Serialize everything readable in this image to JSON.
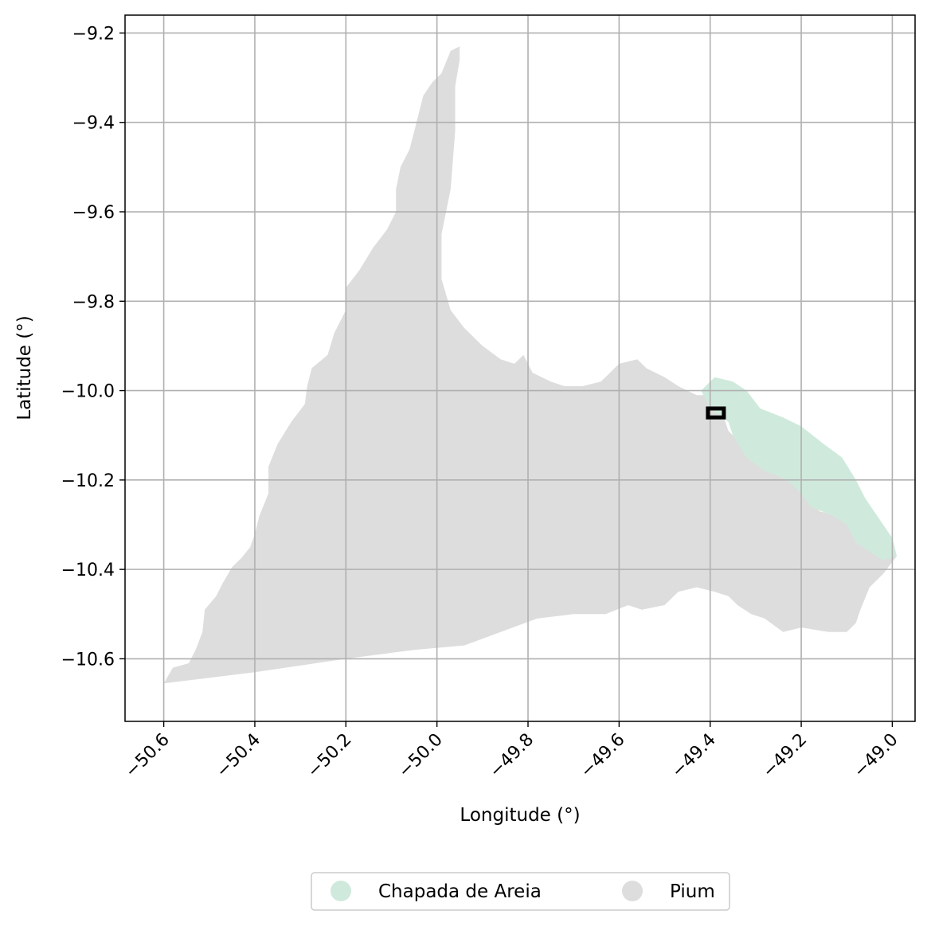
{
  "chart_data": {
    "type": "map",
    "xlabel": "Longitude (°)",
    "ylabel": "Latitude (°)",
    "xlim": [
      -50.685,
      -48.95
    ],
    "ylim": [
      -10.74,
      -9.16
    ],
    "grid": true,
    "x_ticks": [
      -50.6,
      -50.4,
      -50.2,
      -50.0,
      -49.8,
      -49.6,
      -49.4,
      -49.2,
      -49.0
    ],
    "x_tick_labels": [
      "−50.6",
      "−50.4",
      "−50.2",
      "−50.0",
      "−49.8",
      "−49.6",
      "−49.4",
      "−49.2",
      "−49.0"
    ],
    "y_ticks": [
      -9.2,
      -9.4,
      -9.6,
      -9.8,
      -10.0,
      -10.2,
      -10.4,
      -10.6
    ],
    "y_tick_labels": [
      "−9.2",
      "−9.4",
      "−9.6",
      "−9.8",
      "−10.0",
      "−10.2",
      "−10.4",
      "−10.6"
    ],
    "legend_position": "bottom-center",
    "series": [
      {
        "name": "Pium",
        "color": "#dddddd",
        "polygon": [
          [
            -50.6,
            -10.655
          ],
          [
            -50.58,
            -10.62
          ],
          [
            -50.545,
            -10.61
          ],
          [
            -50.53,
            -10.58
          ],
          [
            -50.515,
            -10.54
          ],
          [
            -50.51,
            -10.49
          ],
          [
            -50.485,
            -10.46
          ],
          [
            -50.47,
            -10.43
          ],
          [
            -50.45,
            -10.395
          ],
          [
            -50.43,
            -10.375
          ],
          [
            -50.41,
            -10.35
          ],
          [
            -50.4,
            -10.32
          ],
          [
            -50.39,
            -10.28
          ],
          [
            -50.37,
            -10.23
          ],
          [
            -50.37,
            -10.17
          ],
          [
            -50.35,
            -10.12
          ],
          [
            -50.32,
            -10.07
          ],
          [
            -50.29,
            -10.03
          ],
          [
            -50.285,
            -9.99
          ],
          [
            -50.275,
            -9.95
          ],
          [
            -50.24,
            -9.92
          ],
          [
            -50.225,
            -9.87
          ],
          [
            -50.2,
            -9.82
          ],
          [
            -50.2,
            -9.77
          ],
          [
            -50.17,
            -9.73
          ],
          [
            -50.14,
            -9.68
          ],
          [
            -50.11,
            -9.64
          ],
          [
            -50.09,
            -9.6
          ],
          [
            -50.09,
            -9.55
          ],
          [
            -50.08,
            -9.5
          ],
          [
            -50.06,
            -9.46
          ],
          [
            -50.05,
            -9.42
          ],
          [
            -50.04,
            -9.38
          ],
          [
            -50.03,
            -9.34
          ],
          [
            -50.01,
            -9.31
          ],
          [
            -49.99,
            -9.29
          ],
          [
            -49.97,
            -9.24
          ],
          [
            -49.95,
            -9.23
          ],
          [
            -49.95,
            -9.26
          ],
          [
            -49.96,
            -9.32
          ],
          [
            -49.96,
            -9.42
          ],
          [
            -49.97,
            -9.55
          ],
          [
            -49.99,
            -9.65
          ],
          [
            -49.99,
            -9.75
          ],
          [
            -49.97,
            -9.82
          ],
          [
            -49.94,
            -9.86
          ],
          [
            -49.9,
            -9.9
          ],
          [
            -49.86,
            -9.93
          ],
          [
            -49.83,
            -9.94
          ],
          [
            -49.81,
            -9.92
          ],
          [
            -49.79,
            -9.96
          ],
          [
            -49.75,
            -9.98
          ],
          [
            -49.72,
            -9.99
          ],
          [
            -49.68,
            -9.99
          ],
          [
            -49.64,
            -9.98
          ],
          [
            -49.6,
            -9.94
          ],
          [
            -49.56,
            -9.93
          ],
          [
            -49.54,
            -9.95
          ],
          [
            -49.5,
            -9.97
          ],
          [
            -49.47,
            -9.99
          ],
          [
            -49.43,
            -10.01
          ],
          [
            -49.41,
            -10.01
          ],
          [
            -49.37,
            -10.06
          ],
          [
            -49.36,
            -10.09
          ],
          [
            -49.33,
            -10.12
          ],
          [
            -49.28,
            -10.15
          ],
          [
            -49.24,
            -10.17
          ],
          [
            -49.2,
            -10.2
          ],
          [
            -49.18,
            -10.23
          ],
          [
            -49.16,
            -10.27
          ],
          [
            -49.12,
            -10.28
          ],
          [
            -49.08,
            -10.3
          ],
          [
            -49.06,
            -10.33
          ],
          [
            -49.02,
            -10.35
          ],
          [
            -49.0,
            -10.37
          ],
          [
            -48.99,
            -10.37
          ],
          [
            -49.02,
            -10.41
          ],
          [
            -49.05,
            -10.44
          ],
          [
            -49.07,
            -10.49
          ],
          [
            -49.08,
            -10.52
          ],
          [
            -49.1,
            -10.54
          ],
          [
            -49.14,
            -10.54
          ],
          [
            -49.2,
            -10.53
          ],
          [
            -49.24,
            -10.54
          ],
          [
            -49.28,
            -10.51
          ],
          [
            -49.31,
            -10.5
          ],
          [
            -49.34,
            -10.48
          ],
          [
            -49.36,
            -10.46
          ],
          [
            -49.39,
            -10.45
          ],
          [
            -49.43,
            -10.44
          ],
          [
            -49.47,
            -10.45
          ],
          [
            -49.5,
            -10.48
          ],
          [
            -49.55,
            -10.49
          ],
          [
            -49.58,
            -10.48
          ],
          [
            -49.63,
            -10.5
          ],
          [
            -49.7,
            -10.5
          ],
          [
            -49.78,
            -10.51
          ],
          [
            -49.86,
            -10.54
          ],
          [
            -49.94,
            -10.57
          ],
          [
            -50.05,
            -10.58
          ],
          [
            -50.2,
            -10.6
          ],
          [
            -50.4,
            -10.63
          ],
          [
            -50.6,
            -10.655
          ]
        ]
      },
      {
        "name": "Chapada de Areia",
        "color": "#cfeadc",
        "polygon": [
          [
            -49.42,
            -10.0
          ],
          [
            -49.39,
            -9.97
          ],
          [
            -49.35,
            -9.98
          ],
          [
            -49.32,
            -10.0
          ],
          [
            -49.29,
            -10.04
          ],
          [
            -49.24,
            -10.06
          ],
          [
            -49.2,
            -10.08
          ],
          [
            -49.15,
            -10.12
          ],
          [
            -49.11,
            -10.15
          ],
          [
            -49.08,
            -10.2
          ],
          [
            -49.06,
            -10.24
          ],
          [
            -49.04,
            -10.27
          ],
          [
            -49.02,
            -10.3
          ],
          [
            -49.0,
            -10.33
          ],
          [
            -48.99,
            -10.37
          ],
          [
            -49.02,
            -10.38
          ],
          [
            -49.05,
            -10.36
          ],
          [
            -49.08,
            -10.34
          ],
          [
            -49.1,
            -10.3
          ],
          [
            -49.13,
            -10.28
          ],
          [
            -49.18,
            -10.26
          ],
          [
            -49.2,
            -10.23
          ],
          [
            -49.23,
            -10.2
          ],
          [
            -49.28,
            -10.18
          ],
          [
            -49.32,
            -10.15
          ],
          [
            -49.35,
            -10.1
          ],
          [
            -49.36,
            -10.07
          ],
          [
            -49.4,
            -10.04
          ],
          [
            -49.42,
            -10.0
          ]
        ]
      }
    ],
    "marker": {
      "label": "",
      "polygon": [
        [
          -49.405,
          -10.04
        ],
        [
          -49.37,
          -10.04
        ],
        [
          -49.37,
          -10.06
        ],
        [
          -49.405,
          -10.06
        ],
        [
          -49.405,
          -10.04
        ]
      ]
    },
    "legend": [
      {
        "label": "Chapada de Areia",
        "color": "#cfeadc"
      },
      {
        "label": "Pium",
        "color": "#dddddd"
      }
    ]
  }
}
